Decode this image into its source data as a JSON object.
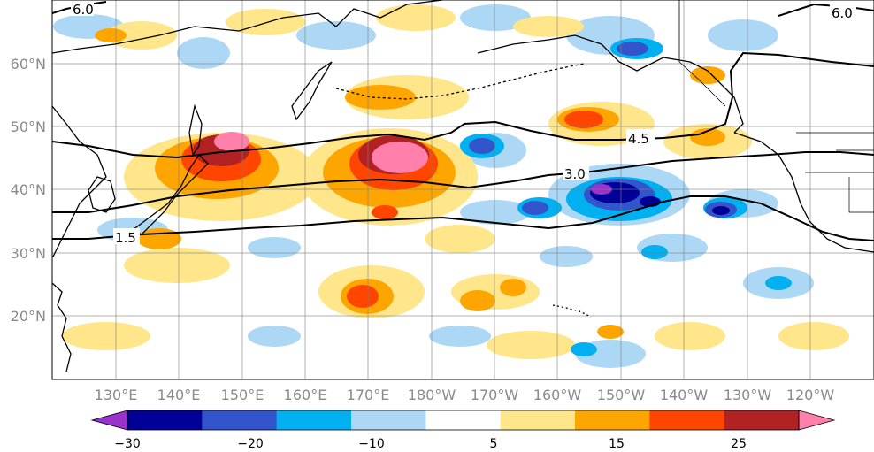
{
  "map": {
    "lat_labels": [
      "60°N",
      "50°N",
      "40°N",
      "30°N",
      "20°N"
    ],
    "lon_labels": [
      "130°E",
      "140°E",
      "150°E",
      "160°E",
      "170°E",
      "180°W",
      "170°W",
      "160°W",
      "150°W",
      "140°W",
      "130°W",
      "120°W"
    ],
    "contours": [
      {
        "label": "6.0"
      },
      {
        "label": "4.5"
      },
      {
        "label": "3.0"
      },
      {
        "label": "1.5"
      },
      {
        "label": "6.0"
      }
    ],
    "colors": {
      "land_outline": "#000000",
      "grid": "#7f7f7f"
    }
  },
  "colorbar": {
    "tick_labels": [
      "−30",
      "−20",
      "−10",
      "5",
      "15",
      "25"
    ],
    "bins": [
      "#9933cc",
      "#000099",
      "#3355cc",
      "#00b0f0",
      "#add8f5",
      "#ffffff",
      "#ffe68a",
      "#ffa500",
      "#ff4500",
      "#b22222",
      "#ff80aa"
    ]
  }
}
